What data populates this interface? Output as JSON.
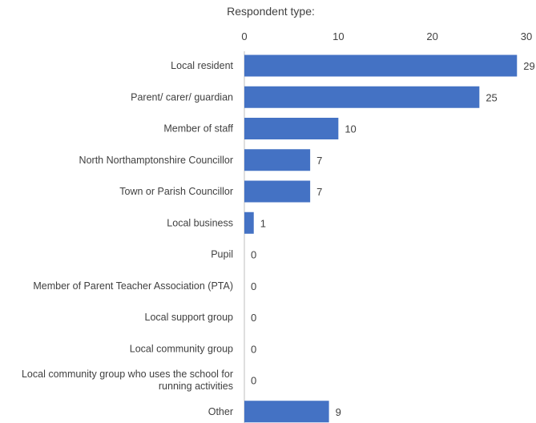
{
  "chart_data": {
    "type": "bar",
    "orientation": "horizontal",
    "title": "Respondent type:",
    "categories": [
      [
        "Local resident"
      ],
      [
        "Parent/ carer/ guardian"
      ],
      [
        "Member of staff"
      ],
      [
        "North Northamptonshire Councillor"
      ],
      [
        "Town or Parish Councillor"
      ],
      [
        "Local business"
      ],
      [
        "Pupil"
      ],
      [
        "Member of Parent Teacher Association (PTA)"
      ],
      [
        "Local support group"
      ],
      [
        "Local community group"
      ],
      [
        "Local community group who uses the school for",
        "running activities"
      ],
      [
        "Other"
      ]
    ],
    "values": [
      29,
      25,
      10,
      7,
      7,
      1,
      0,
      0,
      0,
      0,
      0,
      9
    ],
    "xlim": [
      0,
      30
    ],
    "xticks": [
      0,
      10,
      20,
      30
    ],
    "axis_position": "top",
    "grid": false,
    "legend": "none",
    "bar_color": "#4472C4",
    "axis_color": "#BFBFBF"
  }
}
